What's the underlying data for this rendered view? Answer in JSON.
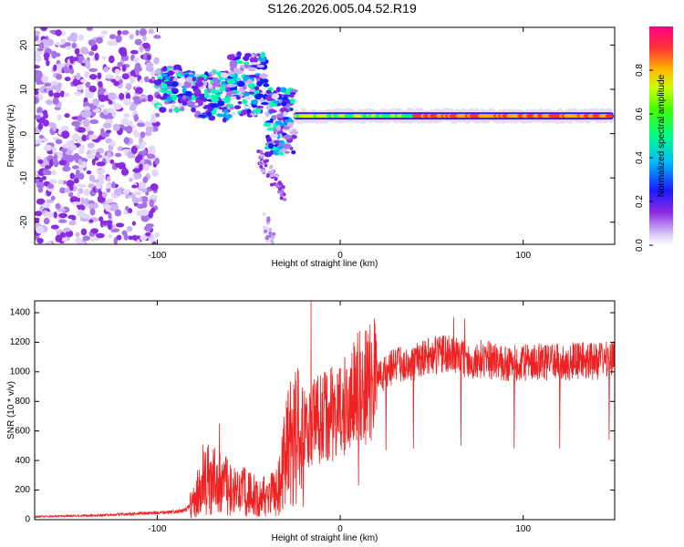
{
  "figure_title": "S126.2026.005.04.52.R19",
  "chart_data": [
    {
      "type": "heatmap",
      "title": "",
      "xlabel": "Height of straight line (km)",
      "ylabel": "Frequency (Hz)",
      "xlim": [
        -167,
        150
      ],
      "ylim": [
        -25,
        24
      ],
      "xticks": [
        -100,
        0,
        100
      ],
      "yticks": [
        -20,
        -10,
        0,
        10,
        20
      ],
      "colorbar": {
        "label": "Normalized spectral amplitude",
        "range": [
          0,
          1
        ],
        "ticks": [
          "0.0",
          "0.2",
          "0.4",
          "0.6",
          "0.8"
        ],
        "colormap": [
          "#ffffff",
          "#c8b0f0",
          "#8a2be2",
          "#0000ff",
          "#00ccff",
          "#00ff66",
          "#ccff00",
          "#ffaa00",
          "#ff2222",
          "#ff0088"
        ]
      },
      "features": {
        "stable_tone": {
          "x_range": [
            -24,
            148
          ],
          "frequency_hz": 4,
          "amplitude_range": [
            0.4,
            0.95
          ]
        },
        "noisy_region": {
          "x_range": [
            -167,
            -100
          ],
          "frequency_range_hz": [
            -25,
            24
          ]
        },
        "transition_streaks": {
          "x_range": [
            -100,
            -25
          ],
          "frequency_range_hz": [
            -3,
            18
          ]
        }
      }
    },
    {
      "type": "line",
      "title": "",
      "xlabel": "Height of straight line (km)",
      "ylabel": "SNR (10 * v/v)",
      "xlim": [
        -167,
        150
      ],
      "ylim": [
        0,
        1480
      ],
      "xticks": [
        -100,
        0,
        100
      ],
      "yticks": [
        0,
        200,
        400,
        600,
        800,
        1000,
        1200,
        1400
      ],
      "color": "#ee2222",
      "x": [
        -167,
        -150,
        -130,
        -110,
        -95,
        -85,
        -80,
        -75,
        -65,
        -55,
        -45,
        -35,
        -28,
        -20,
        -15,
        -10,
        0,
        10,
        15,
        20,
        30,
        40,
        50,
        60,
        70,
        80,
        90,
        100,
        110,
        120,
        130,
        140,
        150
      ],
      "values": [
        20,
        25,
        30,
        40,
        50,
        60,
        120,
        280,
        250,
        200,
        150,
        180,
        500,
        600,
        650,
        700,
        730,
        880,
        900,
        960,
        1040,
        1060,
        1110,
        1120,
        1080,
        1090,
        1050,
        1060,
        1070,
        1060,
        1080,
        1070,
        1090
      ],
      "spikes": [
        {
          "x": -66,
          "y": 650
        },
        {
          "x": -16,
          "y": 1480
        },
        {
          "x": 12,
          "y": 1020
        },
        {
          "x": 62,
          "y": 1370
        },
        {
          "x": 68,
          "y": 1360
        }
      ],
      "dips": [
        {
          "x": 10,
          "y": 230
        },
        {
          "x": 25,
          "y": 470
        },
        {
          "x": 40,
          "y": 480
        },
        {
          "x": 66,
          "y": 500
        },
        {
          "x": 95,
          "y": 480
        },
        {
          "x": 120,
          "y": 480
        },
        {
          "x": 147,
          "y": 540
        }
      ]
    }
  ]
}
